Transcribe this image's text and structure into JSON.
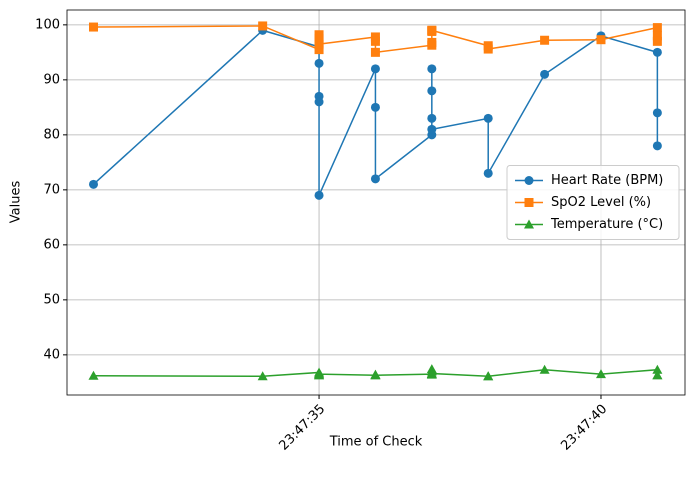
{
  "chart_data": {
    "type": "line",
    "xlabel": "Time of Check",
    "ylabel": "Values",
    "x": [
      "23:47:31",
      "23:47:34",
      "23:47:35",
      "23:47:35",
      "23:47:35",
      "23:47:35",
      "23:47:35",
      "23:47:36",
      "23:47:36",
      "23:47:36",
      "23:47:37",
      "23:47:37",
      "23:47:37",
      "23:47:37",
      "23:47:37",
      "23:47:38",
      "23:47:38",
      "23:47:39",
      "23:47:40",
      "23:47:41",
      "23:47:41",
      "23:47:41"
    ],
    "series": [
      {
        "name": "Heart Rate (BPM)",
        "color": "#1f77b4",
        "marker": "o",
        "values": [
          71,
          99,
          96,
          93,
          87,
          86,
          69,
          92,
          85,
          72,
          80,
          92,
          88,
          83,
          81,
          83,
          73,
          91,
          98,
          95,
          84,
          78
        ]
      },
      {
        "name": "SpO2 Level (%)",
        "color": "#ff7f0e",
        "marker": "s",
        "values": [
          99.6,
          99.8,
          95.5,
          98.2,
          97.5,
          96.5,
          96.5,
          97.8,
          97.0,
          95.0,
          96.3,
          96.8,
          99.0,
          98.8,
          99.0,
          96.2,
          95.6,
          97.2,
          97.3,
          99.5,
          98.0,
          97.0
        ]
      },
      {
        "name": "Temperature (°C)",
        "color": "#2ca02c",
        "marker": "^",
        "values": [
          36.2,
          36.1,
          36.8,
          36.3,
          36.5,
          36.3,
          36.5,
          36.3,
          36.4,
          36.3,
          36.5,
          37.0,
          36.4,
          37.4,
          36.6,
          36.1,
          36.1,
          37.3,
          36.5,
          37.3,
          36.3,
          36.3
        ]
      }
    ],
    "xlim": [
      "23:47:30.53",
      "23:47:41.49"
    ],
    "xticks": [
      "23:47:35",
      "23:47:40"
    ],
    "ylim": [
      32.7,
      102.7
    ],
    "yticks": [
      40,
      50,
      60,
      70,
      80,
      90,
      100
    ],
    "grid": true,
    "legend": "center right"
  }
}
